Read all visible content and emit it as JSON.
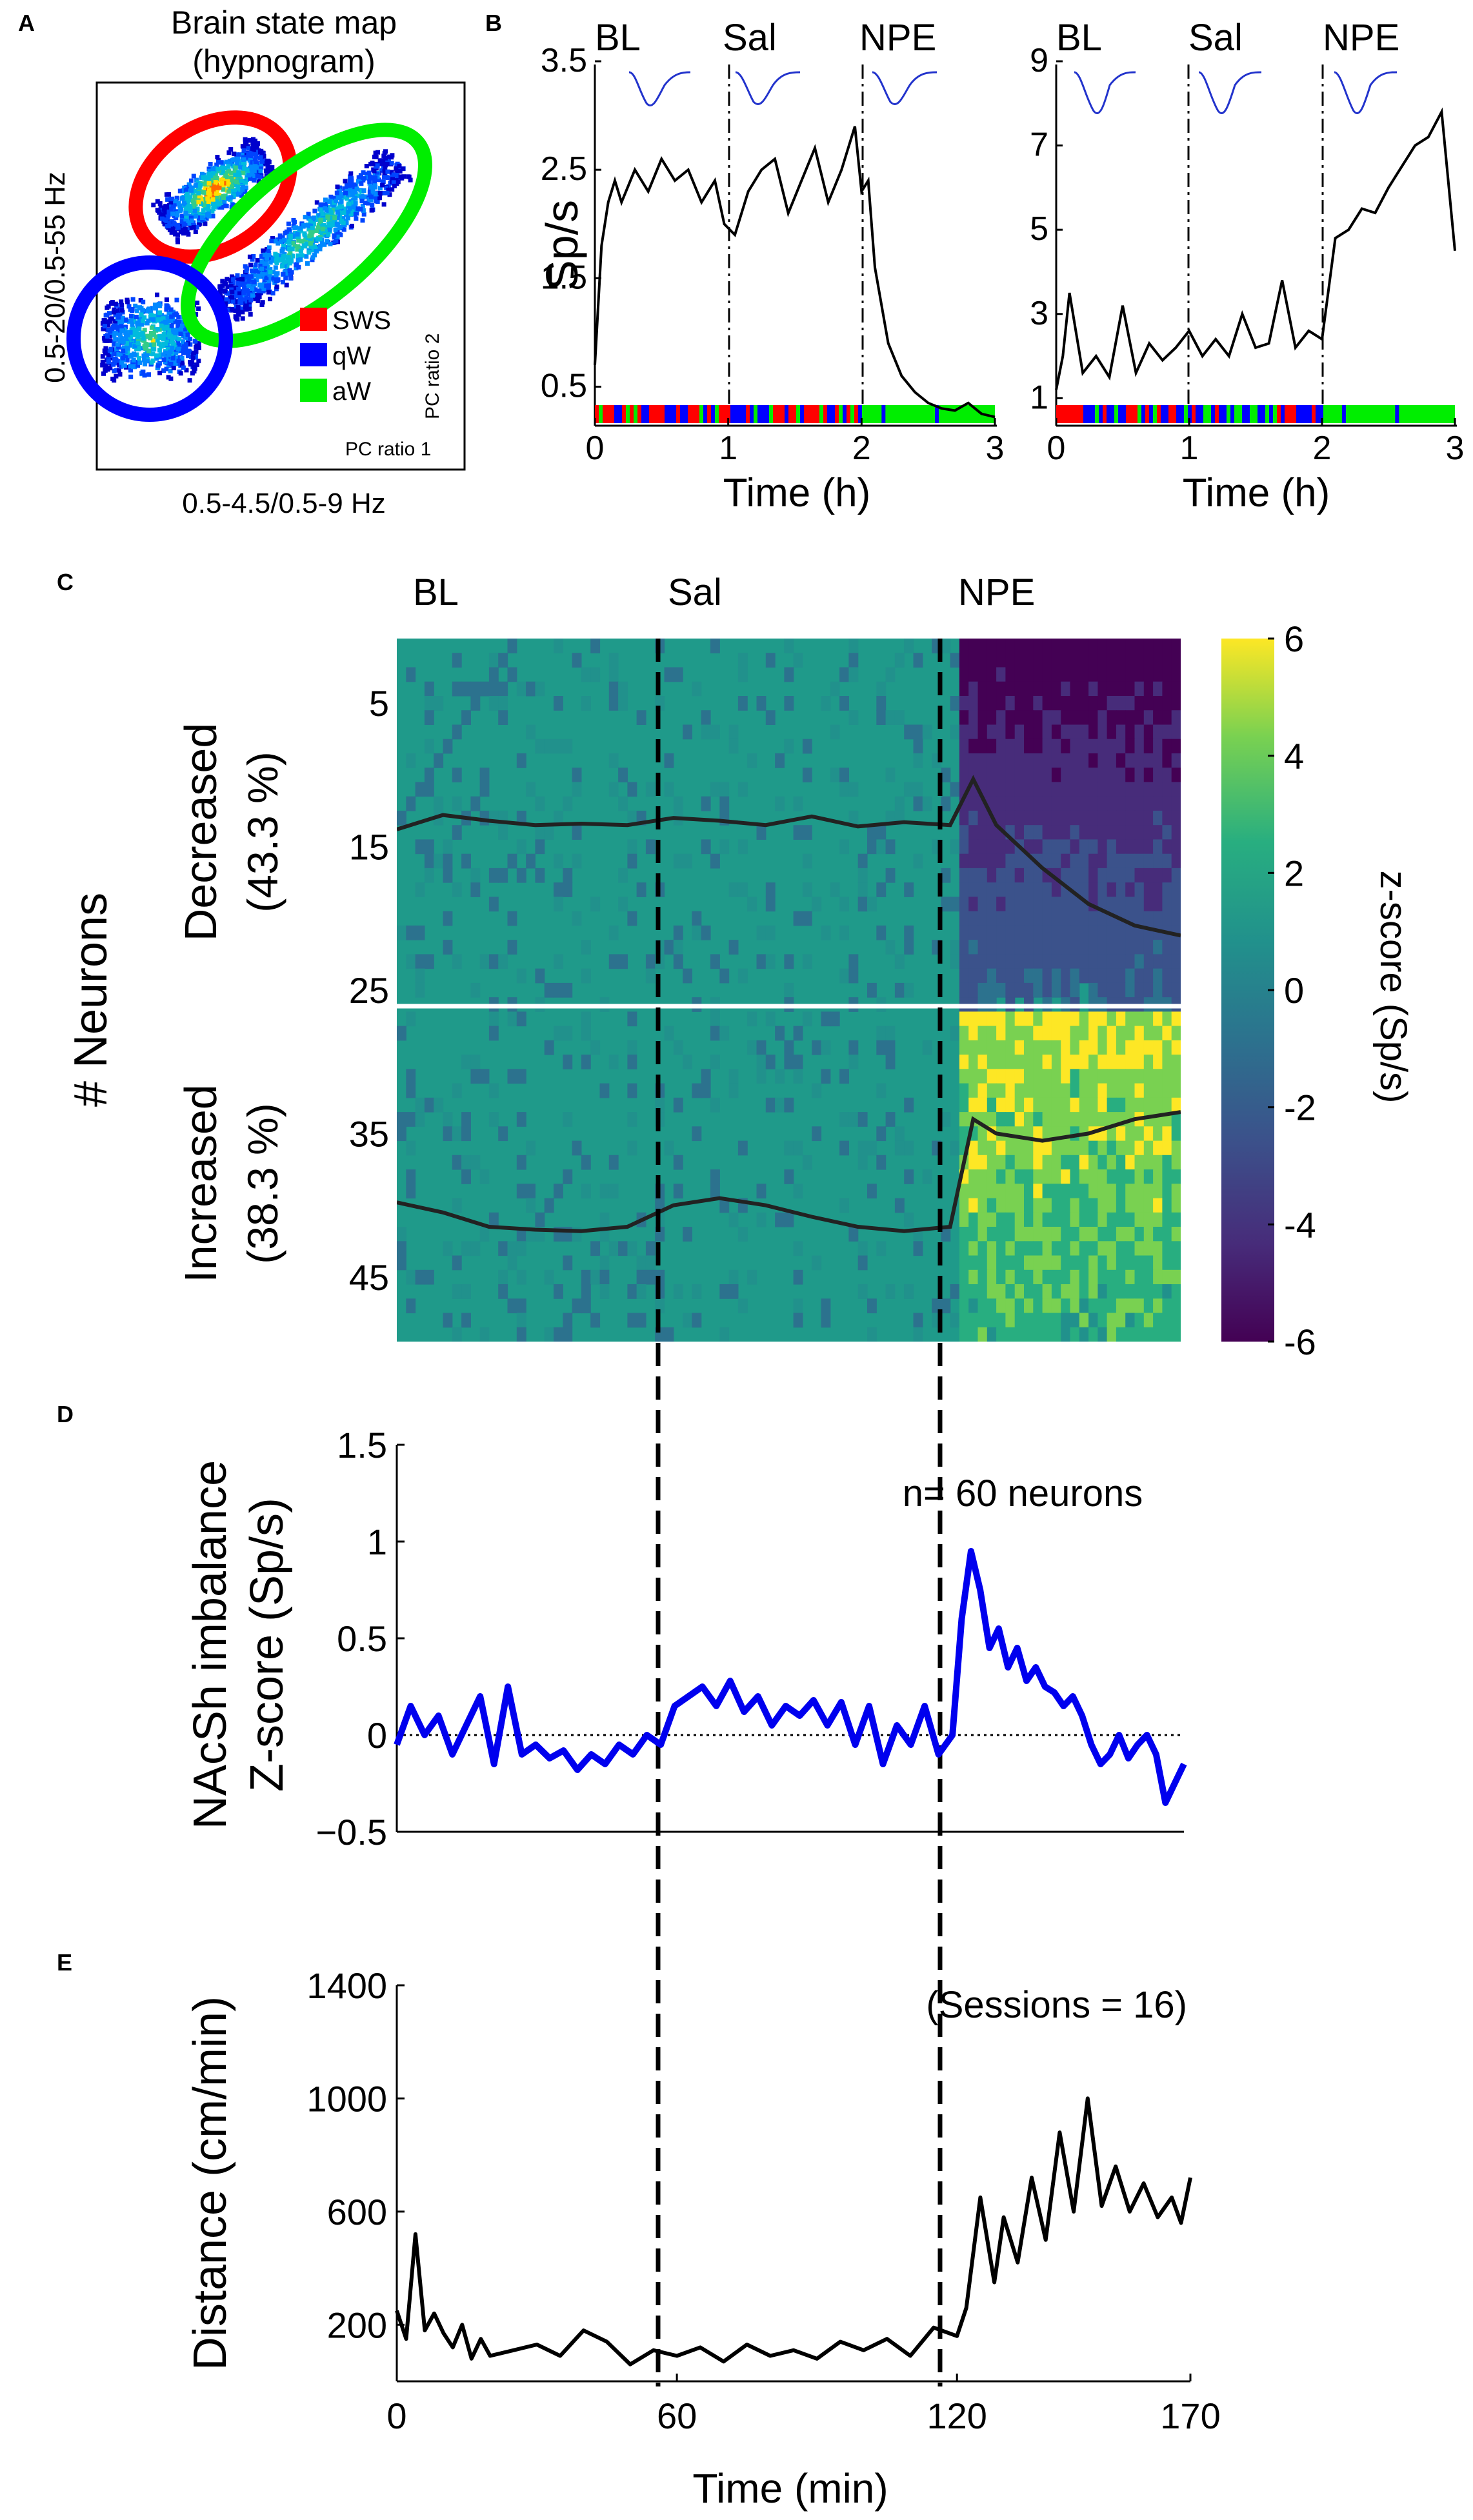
{
  "panels": {
    "A": {
      "label": "A",
      "title_line1": "Brain state map",
      "title_line2": "(hypnogram)",
      "ylabel": "0.5-20/0.5-55 Hz",
      "xlabel": "0.5-4.5/0.5-9 Hz",
      "pc_ratio2": "PC ratio 2",
      "pc_ratio1": "PC ratio 1",
      "legend": [
        {
          "name": "SWS",
          "color": "#ff0000"
        },
        {
          "name": "qW",
          "color": "#0000ff"
        },
        {
          "name": "aW",
          "color": "#00ee00"
        }
      ]
    },
    "B": {
      "label": "B",
      "ylabel": "Sp/s",
      "xlabel": "Time (h)",
      "phases": [
        "BL",
        "Sal",
        "NPE"
      ]
    },
    "C": {
      "label": "C",
      "ylabel": "# Neurons",
      "group_decreased": "Decreased",
      "group_decreased_pct": "(43.3 %)",
      "group_increased": "Increased",
      "group_increased_pct": "(38.3 %)",
      "phases": [
        "BL",
        "Sal",
        "NPE"
      ],
      "colorbar_label": "z-score (Sp/s)"
    },
    "D": {
      "label": "D",
      "ylabel_line1": "NAcSh imbalance",
      "ylabel_line2": "Z-score (Sp/s)",
      "annotation": "n= 60 neurons"
    },
    "E": {
      "label": "E",
      "ylabel": "Distance (cm/min)",
      "xlabel": "Time (min)",
      "annotation": "(Sessions = 16)"
    }
  },
  "colors": {
    "sws": "#ff0000",
    "qw": "#0000ff",
    "aw": "#00ee00",
    "trace": "#000000",
    "imbalance": "#0000ee",
    "waveform": "#2233cc"
  },
  "chart_data": [
    {
      "id": "B-left",
      "type": "line",
      "xlabel": "Time (h)",
      "ylabel": "Sp/s",
      "xlim": [
        0,
        3
      ],
      "ylim": [
        0.2,
        3.5
      ],
      "xticks": [
        0,
        1,
        2,
        3
      ],
      "yticks": [
        0.5,
        1.5,
        2.5,
        3.5
      ],
      "phase_boundaries_h": [
        1,
        2
      ],
      "phases": [
        "BL",
        "Sal",
        "NPE"
      ],
      "x": [
        0,
        0.05,
        0.1,
        0.15,
        0.2,
        0.3,
        0.4,
        0.5,
        0.6,
        0.7,
        0.8,
        0.9,
        0.97,
        1.05,
        1.15,
        1.25,
        1.35,
        1.45,
        1.55,
        1.65,
        1.75,
        1.85,
        1.95,
        2.0,
        2.05,
        2.1,
        2.2,
        2.3,
        2.4,
        2.5,
        2.6,
        2.7,
        2.8,
        2.9,
        3.0
      ],
      "y": [
        0.7,
        1.8,
        2.2,
        2.4,
        2.2,
        2.5,
        2.3,
        2.6,
        2.4,
        2.5,
        2.2,
        2.4,
        2.0,
        1.9,
        2.3,
        2.5,
        2.6,
        2.1,
        2.4,
        2.7,
        2.2,
        2.5,
        2.9,
        2.3,
        2.4,
        1.6,
        0.9,
        0.6,
        0.45,
        0.35,
        0.3,
        0.28,
        0.35,
        0.25,
        0.22
      ]
    },
    {
      "id": "B-right",
      "type": "line",
      "xlabel": "Time (h)",
      "xlim": [
        0,
        3
      ],
      "ylim": [
        0.5,
        9
      ],
      "xticks": [
        0,
        1,
        2,
        3
      ],
      "yticks": [
        1,
        3,
        5,
        7,
        9
      ],
      "phase_boundaries_h": [
        1,
        2
      ],
      "phases": [
        "BL",
        "Sal",
        "NPE"
      ],
      "x": [
        0,
        0.05,
        0.1,
        0.2,
        0.3,
        0.4,
        0.5,
        0.6,
        0.7,
        0.8,
        0.9,
        1.0,
        1.1,
        1.2,
        1.3,
        1.4,
        1.5,
        1.6,
        1.7,
        1.8,
        1.9,
        2.0,
        2.1,
        2.2,
        2.3,
        2.4,
        2.5,
        2.6,
        2.7,
        2.8,
        2.9,
        3.0
      ],
      "y": [
        1.2,
        2.0,
        3.5,
        1.6,
        2.0,
        1.5,
        3.2,
        1.6,
        2.3,
        1.9,
        2.2,
        2.6,
        2.0,
        2.4,
        2.0,
        3.0,
        2.2,
        2.3,
        3.8,
        2.2,
        2.6,
        2.4,
        4.8,
        5.0,
        5.5,
        5.4,
        6.0,
        6.5,
        7.0,
        7.2,
        7.8,
        4.5
      ]
    },
    {
      "id": "C-heatmap",
      "type": "heatmap",
      "xlabel": "Time (min)",
      "ylabel": "# Neurons",
      "xlim": [
        0,
        170
      ],
      "ylim": [
        1,
        49
      ],
      "yticks": [
        5,
        15,
        25,
        35,
        45
      ],
      "group_divider_neuron": 26,
      "colorbar": {
        "min": -6,
        "max": 6,
        "ticks": [
          6,
          4,
          2,
          0,
          -2,
          -4,
          -6
        ],
        "label": "z-score (Sp/s)"
      },
      "mean_decreased": {
        "x": [
          0,
          10,
          20,
          30,
          40,
          50,
          60,
          70,
          80,
          90,
          100,
          110,
          120,
          125,
          130,
          140,
          150,
          160,
          170
        ],
        "neuron_row": [
          13.8,
          12.8,
          13.2,
          13.5,
          13.4,
          13.5,
          13.0,
          13.2,
          13.5,
          12.9,
          13.6,
          13.3,
          13.5,
          10.3,
          13.5,
          16.5,
          19.0,
          20.5,
          21.2
        ]
      },
      "mean_increased": {
        "x": [
          0,
          10,
          20,
          30,
          40,
          50,
          60,
          70,
          80,
          90,
          100,
          110,
          120,
          125,
          130,
          140,
          150,
          160,
          170
        ],
        "neuron_row": [
          39.8,
          40.5,
          41.5,
          41.7,
          41.8,
          41.5,
          40.0,
          39.5,
          40.0,
          40.8,
          41.5,
          41.8,
          41.5,
          34.0,
          35.0,
          35.5,
          35.0,
          34.0,
          33.5
        ]
      }
    },
    {
      "id": "D",
      "type": "line",
      "xlabel": "Time (min)",
      "ylabel": "NAcSh imbalance Z-score (Sp/s)",
      "xlim": [
        0,
        170
      ],
      "ylim": [
        -0.5,
        1.5
      ],
      "yticks": [
        -0.5,
        0,
        0.5,
        1,
        1.5
      ],
      "zero_line": "dotted",
      "x": [
        0,
        3,
        6,
        9,
        12,
        15,
        18,
        21,
        24,
        27,
        30,
        33,
        36,
        39,
        42,
        45,
        48,
        51,
        54,
        57,
        60,
        63,
        66,
        69,
        72,
        75,
        78,
        81,
        84,
        87,
        90,
        93,
        96,
        99,
        102,
        105,
        108,
        111,
        114,
        117,
        120,
        122,
        124,
        126,
        128,
        130,
        132,
        134,
        136,
        138,
        140,
        142,
        144,
        146,
        148,
        150,
        152,
        154,
        156,
        158,
        160,
        162,
        164,
        166,
        168,
        170
      ],
      "y": [
        -0.05,
        0.15,
        0.0,
        0.1,
        -0.1,
        0.05,
        0.2,
        -0.15,
        0.25,
        -0.1,
        -0.05,
        -0.12,
        -0.08,
        -0.18,
        -0.1,
        -0.15,
        -0.05,
        -0.1,
        0.0,
        -0.05,
        0.15,
        0.2,
        0.25,
        0.15,
        0.28,
        0.12,
        0.2,
        0.05,
        0.15,
        0.1,
        0.18,
        0.05,
        0.17,
        -0.05,
        0.15,
        -0.15,
        0.05,
        -0.05,
        0.15,
        -0.1,
        0.0,
        0.6,
        0.95,
        0.75,
        0.45,
        0.55,
        0.35,
        0.45,
        0.28,
        0.35,
        0.25,
        0.22,
        0.15,
        0.2,
        0.1,
        -0.05,
        -0.15,
        -0.1,
        0.0,
        -0.12,
        -0.05,
        0.0,
        -0.1,
        -0.35,
        -0.25,
        -0.15
      ]
    },
    {
      "id": "E",
      "type": "line",
      "xlabel": "Time (min)",
      "ylabel": "Distance (cm/min)",
      "xlim": [
        0,
        170
      ],
      "ylim": [
        0,
        1400
      ],
      "xticks": [
        0,
        60,
        120,
        170
      ],
      "yticks": [
        200,
        600,
        1000,
        1400
      ],
      "phase_boundaries_min": [
        60,
        122
      ],
      "x": [
        0,
        2,
        4,
        6,
        8,
        10,
        12,
        14,
        16,
        18,
        20,
        25,
        30,
        35,
        40,
        45,
        50,
        55,
        60,
        65,
        70,
        75,
        80,
        85,
        90,
        95,
        100,
        105,
        110,
        115,
        120,
        122,
        125,
        128,
        130,
        133,
        136,
        139,
        142,
        145,
        148,
        151,
        154,
        157,
        160,
        163,
        166,
        168,
        170
      ],
      "y": [
        250,
        150,
        520,
        180,
        240,
        170,
        120,
        200,
        80,
        150,
        90,
        110,
        130,
        90,
        180,
        140,
        60,
        110,
        90,
        120,
        70,
        130,
        90,
        110,
        80,
        140,
        110,
        150,
        90,
        190,
        160,
        260,
        650,
        350,
        580,
        420,
        720,
        500,
        880,
        600,
        1000,
        620,
        760,
        600,
        700,
        580,
        650,
        560,
        720
      ]
    }
  ]
}
